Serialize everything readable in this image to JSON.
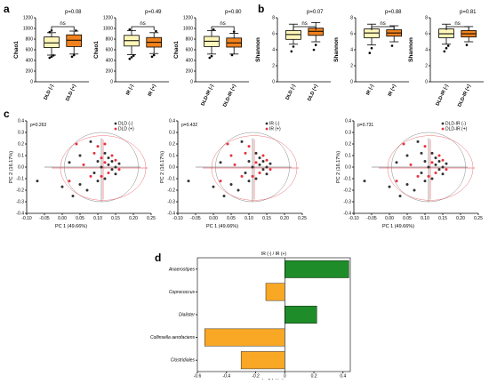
{
  "colors": {
    "box_neg": "#fef6b8",
    "box_pos": "#f0821e",
    "pca_neg": "#333333",
    "pca_pos": "#e6323c",
    "bar_pos": "#1e8c28",
    "bar_neg": "#f9a825"
  },
  "panels": {
    "a": {
      "letter": "a",
      "ylabel": "Chao1",
      "ylim": [
        0,
        1200
      ],
      "yticks": [
        0,
        200,
        400,
        600,
        800,
        1000,
        1200
      ],
      "plots": [
        {
          "name": "dld",
          "pvalue": "p=0.08",
          "ns": "ns",
          "groups": [
            {
              "label": "DLD (-)",
              "kind": "neg",
              "min": 500,
              "q1": 640,
              "median": 730,
              "q3": 840,
              "max": 920,
              "outliers": [
                450,
                470,
                495,
                930,
                960
              ]
            },
            {
              "label": "DLD (+)",
              "kind": "pos",
              "min": 520,
              "q1": 660,
              "median": 780,
              "q3": 880,
              "max": 950,
              "outliers": [
                470,
                500,
                960
              ]
            }
          ]
        },
        {
          "name": "ir",
          "pvalue": "p=0.49",
          "ns": "ns",
          "groups": [
            {
              "label": "IR (-)",
              "kind": "neg",
              "min": 510,
              "q1": 670,
              "median": 770,
              "q3": 870,
              "max": 960,
              "outliers": [
                430,
                460,
                490,
                980
              ]
            },
            {
              "label": "IR (+)",
              "kind": "pos",
              "min": 530,
              "q1": 650,
              "median": 740,
              "q3": 830,
              "max": 920,
              "outliers": [
                470,
                500,
                950
              ]
            }
          ]
        },
        {
          "name": "dldir",
          "pvalue": "p=0.80",
          "ns": "ns",
          "groups": [
            {
              "label": "DLD-IR (-)",
              "kind": "neg",
              "min": 520,
              "q1": 660,
              "median": 760,
              "q3": 850,
              "max": 960,
              "outliers": [
                450,
                480,
                980
              ]
            },
            {
              "label": "DLD-IR (+)",
              "kind": "pos",
              "min": 520,
              "q1": 650,
              "median": 730,
              "q3": 820,
              "max": 910,
              "outliers": [
                500,
                940
              ]
            }
          ]
        }
      ]
    },
    "b": {
      "letter": "b",
      "ylabel": "Shannon",
      "ylim": [
        0,
        8
      ],
      "yticks": [
        0,
        2,
        4,
        6,
        8
      ],
      "plots": [
        {
          "name": "dld",
          "pvalue": "p=0.07",
          "ns": "ns",
          "groups": [
            {
              "label": "DLD (-)",
              "kind": "neg",
              "min": 4.7,
              "q1": 5.3,
              "median": 5.9,
              "q3": 6.4,
              "max": 7.2,
              "outliers": [
                3.8,
                4.4
              ]
            },
            {
              "label": "DLD (+)",
              "kind": "pos",
              "min": 5.0,
              "q1": 5.8,
              "median": 6.3,
              "q3": 6.7,
              "max": 7.4,
              "outliers": [
                4.0,
                4.6
              ]
            }
          ]
        },
        {
          "name": "ir",
          "pvalue": "p=0.88",
          "ns": "ns",
          "groups": [
            {
              "label": "IR (-)",
              "kind": "neg",
              "min": 4.6,
              "q1": 5.5,
              "median": 6.1,
              "q3": 6.6,
              "max": 7.2,
              "outliers": [
                3.6,
                4.2
              ]
            },
            {
              "label": "IR (+)",
              "kind": "pos",
              "min": 5.0,
              "q1": 5.7,
              "median": 6.1,
              "q3": 6.5,
              "max": 7.0,
              "outliers": [
                4.5
              ]
            }
          ]
        },
        {
          "name": "dldir",
          "pvalue": "p=0.81",
          "ns": "ns",
          "groups": [
            {
              "label": "DLD-IR (-)",
              "kind": "neg",
              "min": 4.7,
              "q1": 5.5,
              "median": 6.0,
              "q3": 6.6,
              "max": 7.2,
              "outliers": [
                3.8,
                4.2,
                4.5
              ]
            },
            {
              "label": "DLD-IR (+)",
              "kind": "pos",
              "min": 5.0,
              "q1": 5.6,
              "median": 6.0,
              "q3": 6.4,
              "max": 6.9,
              "outliers": [
                4.6
              ]
            }
          ]
        }
      ]
    },
    "c": {
      "letter": "c",
      "xlabel": "PC 1 (49.66%)",
      "ylabel": "PC 2 (16.17%)",
      "xlim": [
        -0.1,
        0.25
      ],
      "ylim": [
        -0.4,
        0.4
      ],
      "xticks": [
        -0.1,
        -0.05,
        0,
        0.05,
        0.1,
        0.15,
        0.2,
        0.25
      ],
      "xtick_labels": [
        "-0.10",
        "-0.05",
        "0.00",
        "0.05",
        "0.10",
        "0.15",
        "0.20",
        "0.25"
      ],
      "yticks": [
        -0.4,
        -0.3,
        -0.2,
        -0.1,
        0,
        0.1,
        0.2,
        0.3,
        0.4
      ],
      "ytick_labels": [
        "-0.4",
        "-0.3",
        "-0.2",
        "-0.1",
        "0.0",
        "0.1",
        "0.2",
        "0.3",
        "0.4"
      ],
      "plots": [
        {
          "name": "dld",
          "pvalue": "p=0.263",
          "legend": [
            "DLD (-)",
            "DLD (+)"
          ],
          "neg_points": [
            [
              -0.07,
              -0.12
            ],
            [
              0.0,
              -0.17
            ],
            [
              0.03,
              -0.25
            ],
            [
              0.05,
              -0.15
            ],
            [
              0.07,
              -0.2
            ],
            [
              0.08,
              0.22
            ],
            [
              0.09,
              -0.05
            ],
            [
              0.1,
              0.05
            ],
            [
              0.11,
              0.0
            ],
            [
              0.12,
              0.12
            ],
            [
              0.12,
              -0.1
            ],
            [
              0.13,
              0.02
            ],
            [
              0.13,
              0.08
            ],
            [
              0.14,
              -0.02
            ],
            [
              0.14,
              0.05
            ],
            [
              0.15,
              0.0
            ],
            [
              0.15,
              -0.06
            ],
            [
              0.16,
              0.03
            ],
            [
              0.1,
              -0.12
            ],
            [
              0.02,
              0.04
            ],
            [
              0.05,
              0.1
            ]
          ],
          "pos_points": [
            [
              0.02,
              -0.12
            ],
            [
              0.04,
              0.2
            ],
            [
              0.06,
              0.02
            ],
            [
              0.08,
              -0.08
            ],
            [
              0.09,
              0.12
            ],
            [
              0.1,
              0.18
            ],
            [
              0.11,
              -0.08
            ],
            [
              0.12,
              0.04
            ],
            [
              0.13,
              -0.05
            ],
            [
              0.14,
              0.1
            ],
            [
              0.15,
              0.06
            ],
            [
              0.16,
              -0.02
            ],
            [
              0.12,
              0.2
            ],
            [
              0.11,
              0.08
            ]
          ]
        },
        {
          "name": "ir",
          "pvalue": "p=0.432",
          "legend": [
            "IR (-)",
            "IR (+)"
          ],
          "neg_points": [
            [
              -0.07,
              -0.12
            ],
            [
              0.0,
              -0.17
            ],
            [
              0.03,
              -0.25
            ],
            [
              0.05,
              -0.15
            ],
            [
              0.07,
              -0.2
            ],
            [
              0.08,
              0.22
            ],
            [
              0.09,
              -0.05
            ],
            [
              0.1,
              0.05
            ],
            [
              0.11,
              0.0
            ],
            [
              0.12,
              0.12
            ],
            [
              0.12,
              -0.1
            ],
            [
              0.13,
              0.02
            ],
            [
              0.13,
              0.08
            ],
            [
              0.14,
              -0.02
            ],
            [
              0.14,
              0.05
            ],
            [
              0.15,
              0.0
            ],
            [
              0.15,
              -0.06
            ],
            [
              0.16,
              0.03
            ],
            [
              0.1,
              -0.12
            ],
            [
              0.02,
              0.04
            ]
          ],
          "pos_points": [
            [
              0.02,
              -0.12
            ],
            [
              0.04,
              0.2
            ],
            [
              0.06,
              0.02
            ],
            [
              0.08,
              -0.08
            ],
            [
              0.09,
              0.12
            ],
            [
              0.1,
              0.18
            ],
            [
              0.11,
              -0.08
            ],
            [
              0.12,
              0.04
            ],
            [
              0.13,
              -0.05
            ],
            [
              0.14,
              0.1
            ],
            [
              0.15,
              0.06
            ],
            [
              0.16,
              -0.02
            ],
            [
              0.05,
              0.1
            ]
          ]
        },
        {
          "name": "dldir",
          "pvalue": "p=0.731",
          "legend": [
            "DLD-IR (-)",
            "DLD-IR (+)"
          ],
          "neg_points": [
            [
              -0.07,
              -0.12
            ],
            [
              0.0,
              -0.17
            ],
            [
              0.03,
              -0.25
            ],
            [
              0.05,
              -0.15
            ],
            [
              0.07,
              -0.2
            ],
            [
              0.08,
              0.22
            ],
            [
              0.09,
              -0.05
            ],
            [
              0.1,
              0.05
            ],
            [
              0.11,
              0.0
            ],
            [
              0.12,
              0.12
            ],
            [
              0.12,
              -0.1
            ],
            [
              0.13,
              0.02
            ],
            [
              0.13,
              0.08
            ],
            [
              0.14,
              -0.02
            ],
            [
              0.14,
              0.05
            ],
            [
              0.15,
              0.0
            ],
            [
              0.15,
              -0.06
            ],
            [
              0.16,
              0.03
            ],
            [
              0.1,
              -0.12
            ],
            [
              0.02,
              0.04
            ],
            [
              0.05,
              0.1
            ],
            [
              0.09,
              0.12
            ]
          ],
          "pos_points": [
            [
              0.02,
              -0.12
            ],
            [
              0.04,
              0.2
            ],
            [
              0.06,
              0.02
            ],
            [
              0.08,
              -0.08
            ],
            [
              0.1,
              0.18
            ],
            [
              0.11,
              -0.08
            ],
            [
              0.12,
              0.04
            ],
            [
              0.13,
              -0.05
            ],
            [
              0.14,
              0.1
            ],
            [
              0.15,
              0.06
            ],
            [
              0.16,
              -0.02
            ]
          ]
        }
      ]
    },
    "d": {
      "letter": "d",
      "title": "IR (-) / IR (+)",
      "xlabel": "log2 fold change",
      "xlim": [
        -0.6,
        0.45
      ],
      "xticks": [
        -0.6,
        -0.4,
        -0.2,
        0,
        0.2,
        0.4
      ],
      "xtick_labels": [
        "-0.6",
        "-0.4",
        "-0.2",
        "0",
        "0.2",
        "0.4"
      ]
    }
  },
  "chart_data": [
    {
      "type": "bar",
      "title": "IR (-) / IR (+)",
      "xlabel": "log2 fold change",
      "ylabel": "",
      "xlim": [
        -0.6,
        0.45
      ],
      "categories": [
        "Anaerostipes",
        "Coprococcus",
        "Dialister",
        "Collinsella aerofaciens",
        "Clostridiales"
      ],
      "values": [
        0.44,
        -0.13,
        0.22,
        -0.55,
        -0.3
      ]
    }
  ]
}
